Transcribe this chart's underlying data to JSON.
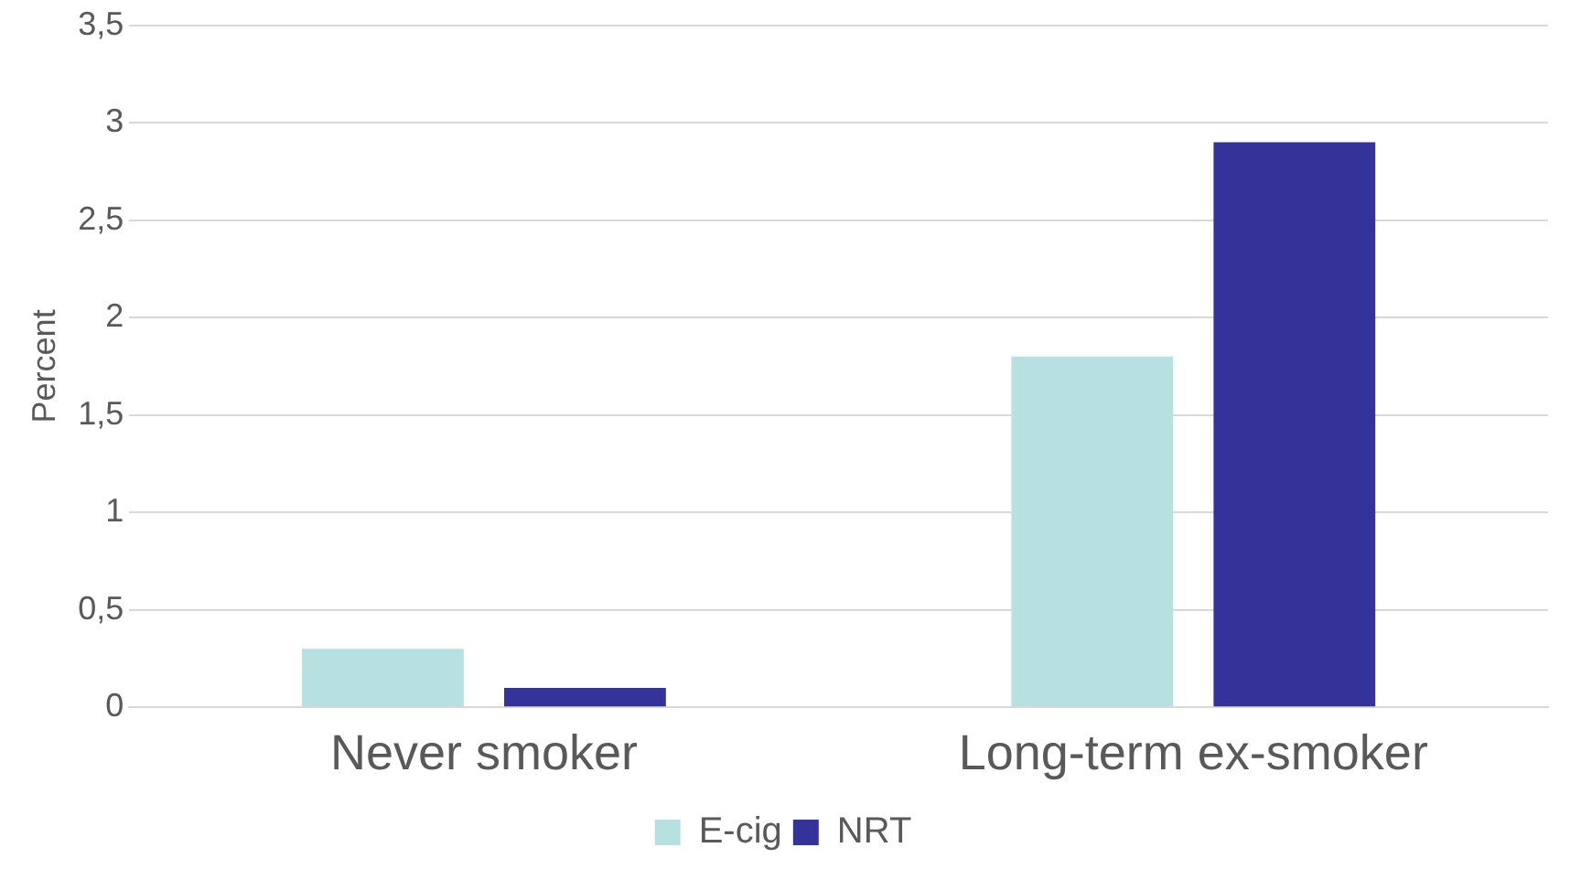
{
  "chart_data": {
    "type": "bar",
    "ylabel": "Percent",
    "categories": [
      "Never smoker",
      "Long-term ex-smoker"
    ],
    "series": [
      {
        "name": "E-cig",
        "color": "#b7e0e0",
        "values": [
          0.3,
          1.8
        ]
      },
      {
        "name": "NRT",
        "color": "#333399",
        "values": [
          0.1,
          2.9
        ]
      }
    ],
    "ylim": [
      0,
      3.5
    ],
    "yticks": [
      0,
      {
        "value": 0.5,
        "label": "0,5"
      },
      1,
      {
        "value": 1.5,
        "label": "1,5"
      },
      2,
      {
        "value": 2.5,
        "label": "2,5"
      },
      3,
      {
        "value": 3.5,
        "label": "3,5"
      }
    ],
    "grid": "y",
    "legend": "bottom"
  }
}
